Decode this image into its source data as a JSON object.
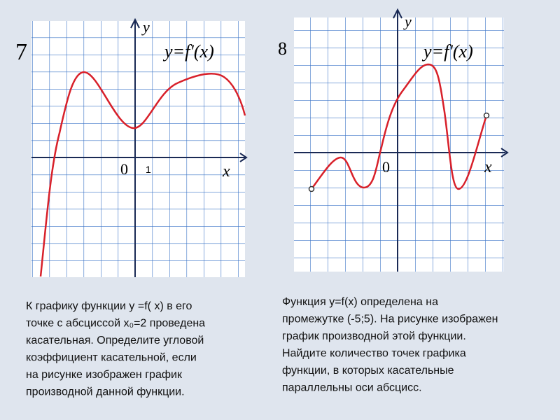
{
  "left": {
    "number": "7",
    "y_axis": "y",
    "formula": "y=f'(x)",
    "origin": "0",
    "unit": "1",
    "x_axis": "x",
    "text": [
      "К графику функции y =f( x)   в его",
      "точке с абсциссой  x₀=2 проведена",
      "касательная. Определите угловой",
      "коэффициент касательной, если",
      "на рисунке изображен график",
      "производной данной функции."
    ]
  },
  "right": {
    "number": "8",
    "y_axis": "y",
    "formula": "y=f'(x)",
    "origin": "0",
    "x_axis": "x",
    "text": [
      "Функция y=f(x) определена на",
      "промежутке (-5;5). На рисунке изображен",
      "график  производной этой функции.",
      "Найдите количество точек графика",
      "функции, в которых касательные",
      "параллельны оси абсцисс."
    ]
  }
}
